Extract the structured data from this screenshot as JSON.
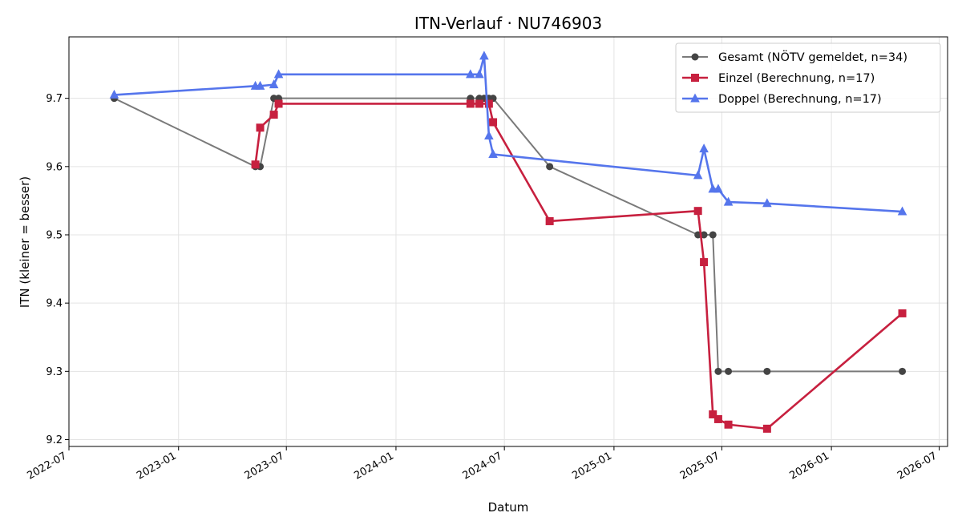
{
  "chart_data": {
    "type": "line",
    "title": "ITN-Verlauf · NU746903",
    "xlabel": "Datum",
    "ylabel": "ITN  (kleiner = besser)",
    "xlim": [
      "2022-07-01",
      "2026-07-15"
    ],
    "ylim": [
      9.19,
      9.79
    ],
    "x_ticks": [
      "2022-07",
      "2023-01",
      "2023-07",
      "2024-01",
      "2024-07",
      "2025-01",
      "2025-07",
      "2026-01",
      "2026-07"
    ],
    "y_ticks": [
      "9.2",
      "9.3",
      "9.4",
      "9.5",
      "9.6",
      "9.7"
    ],
    "grid": true,
    "legend_position": "top-right",
    "series": [
      {
        "name": "Gesamt (NÖTV gemeldet, n=34)",
        "color": "#444444",
        "marker": "circle",
        "points": [
          [
            "2022-09-15",
            9.7
          ],
          [
            "2023-05-10",
            9.6
          ],
          [
            "2023-05-18",
            9.6
          ],
          [
            "2023-06-10",
            9.7
          ],
          [
            "2023-06-18",
            9.7
          ],
          [
            "2024-05-05",
            9.7
          ],
          [
            "2024-05-20",
            9.7
          ],
          [
            "2024-05-28",
            9.7
          ],
          [
            "2024-06-05",
            9.7
          ],
          [
            "2024-06-12",
            9.7
          ],
          [
            "2024-09-15",
            9.6
          ],
          [
            "2025-05-22",
            9.5
          ],
          [
            "2025-06-01",
            9.5
          ],
          [
            "2025-06-16",
            9.5
          ],
          [
            "2025-06-25",
            9.3
          ],
          [
            "2025-07-12",
            9.3
          ],
          [
            "2025-09-15",
            9.3
          ],
          [
            "2026-04-30",
            9.3
          ]
        ]
      },
      {
        "name": "Einzel (Berechnung, n=17)",
        "color": "#c7203f",
        "marker": "square",
        "points": [
          [
            "2023-05-10",
            9.603
          ],
          [
            "2023-05-18",
            9.657
          ],
          [
            "2023-06-10",
            9.676
          ],
          [
            "2023-06-18",
            9.692
          ],
          [
            "2024-05-05",
            9.692
          ],
          [
            "2024-05-20",
            9.692
          ],
          [
            "2024-06-05",
            9.692
          ],
          [
            "2024-06-12",
            9.665
          ],
          [
            "2024-09-15",
            9.52
          ],
          [
            "2025-05-22",
            9.535
          ],
          [
            "2025-06-01",
            9.46
          ],
          [
            "2025-06-16",
            9.237
          ],
          [
            "2025-06-25",
            9.23
          ],
          [
            "2025-07-12",
            9.222
          ],
          [
            "2025-09-15",
            9.216
          ],
          [
            "2026-04-30",
            9.385
          ]
        ]
      },
      {
        "name": "Doppel (Berechnung, n=17)",
        "color": "#5575ec",
        "marker": "triangle",
        "points": [
          [
            "2022-09-15",
            9.705
          ],
          [
            "2023-05-10",
            9.718
          ],
          [
            "2023-05-18",
            9.718
          ],
          [
            "2023-06-10",
            9.72
          ],
          [
            "2023-06-18",
            9.735
          ],
          [
            "2024-05-05",
            9.735
          ],
          [
            "2024-05-20",
            9.735
          ],
          [
            "2024-05-28",
            9.762
          ],
          [
            "2024-06-05",
            9.645
          ],
          [
            "2024-06-12",
            9.618
          ],
          [
            "2025-05-22",
            9.587
          ],
          [
            "2025-06-01",
            9.626
          ],
          [
            "2025-06-16",
            9.567
          ],
          [
            "2025-06-25",
            9.567
          ],
          [
            "2025-07-12",
            9.548
          ],
          [
            "2025-09-15",
            9.546
          ],
          [
            "2026-04-30",
            9.534
          ]
        ]
      }
    ]
  }
}
